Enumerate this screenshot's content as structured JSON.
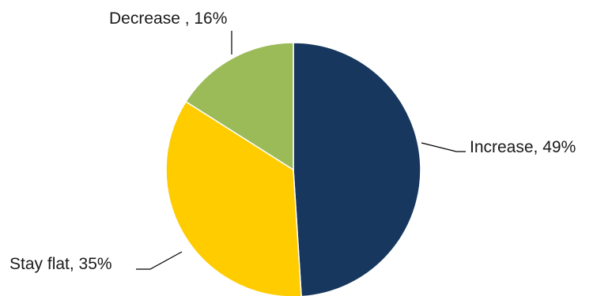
{
  "chart_data": {
    "type": "pie",
    "title": "",
    "slices": [
      {
        "label": "Increase",
        "value": 49,
        "display": "Increase, 49%",
        "color": "#17375e"
      },
      {
        "label": "Stay flat",
        "value": 35,
        "display": "Stay flat, 35%",
        "color": "#ffcc00"
      },
      {
        "label": "Decrease",
        "value": 16,
        "display": "Decrease , 16%",
        "color": "#9bbb59"
      }
    ],
    "start_angle": "12 o'clock",
    "direction": "clockwise",
    "legend": "none"
  }
}
